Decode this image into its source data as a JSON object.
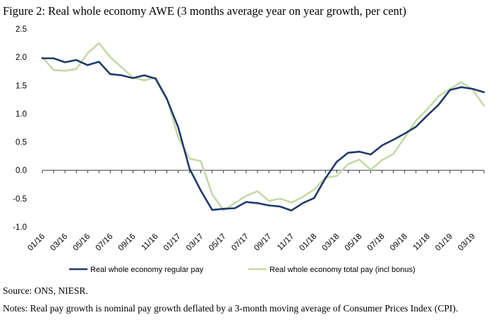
{
  "figure": {
    "title": "Figure 2: Real whole economy AWE (3 months average year on year growth, per cent)",
    "source": "Source: ONS, NIESR.",
    "notes": "Notes: Real pay growth is nominal pay growth deflated by a 3-month moving average of Consumer Prices Index (CPI)."
  },
  "chart_data": {
    "type": "line",
    "title": "Figure 2: Real whole economy AWE (3 months average year on year growth, per cent)",
    "xlabel": "",
    "ylabel": "",
    "ylim": [
      -1.0,
      2.5
    ],
    "yticks": [
      "2.5",
      "2.0",
      "1.5",
      "1.0",
      "0.5",
      "0.0",
      "-0.5",
      "-1.0"
    ],
    "ytick_values": [
      2.5,
      2.0,
      1.5,
      1.0,
      0.5,
      0.0,
      -0.5,
      -1.0
    ],
    "x": [
      "01/16",
      "02/16",
      "03/16",
      "04/16",
      "05/16",
      "06/16",
      "07/16",
      "08/16",
      "09/16",
      "10/16",
      "11/16",
      "12/16",
      "01/17",
      "02/17",
      "03/17",
      "04/17",
      "05/17",
      "06/17",
      "07/17",
      "08/17",
      "09/17",
      "10/17",
      "11/17",
      "12/17",
      "01/18",
      "02/18",
      "03/18",
      "04/18",
      "05/18",
      "06/18",
      "07/18",
      "08/18",
      "09/18",
      "10/18",
      "11/18",
      "12/18",
      "01/19",
      "02/19",
      "03/19",
      "04/19"
    ],
    "xtick_labels": [
      "01/16",
      "03/16",
      "05/16",
      "07/16",
      "09/16",
      "11/16",
      "01/17",
      "03/17",
      "05/17",
      "07/17",
      "09/17",
      "11/17",
      "01/18",
      "03/18",
      "05/18",
      "07/18",
      "09/18",
      "11/18",
      "01/19",
      "03/19"
    ],
    "grid": false,
    "legend_position": "bottom",
    "series": [
      {
        "name": "Real whole economy regular pay",
        "color": "#1f3a6e",
        "values": [
          1.98,
          1.98,
          1.91,
          1.95,
          1.86,
          1.92,
          1.7,
          1.68,
          1.63,
          1.68,
          1.62,
          1.26,
          0.76,
          0.03,
          -0.36,
          -0.7,
          -0.68,
          -0.67,
          -0.56,
          -0.58,
          -0.62,
          -0.64,
          -0.71,
          -0.58,
          -0.49,
          -0.14,
          0.15,
          0.31,
          0.33,
          0.28,
          0.44,
          0.54,
          0.65,
          0.77,
          0.97,
          1.16,
          1.42,
          1.47,
          1.44,
          1.38
        ]
      },
      {
        "name": "Real whole economy total pay (incl bonus)",
        "color": "#c5d9a5",
        "values": [
          2.0,
          1.77,
          1.76,
          1.79,
          2.07,
          2.25,
          2.0,
          1.82,
          1.64,
          1.59,
          1.64,
          1.28,
          0.58,
          0.21,
          0.16,
          -0.42,
          -0.71,
          -0.58,
          -0.45,
          -0.37,
          -0.54,
          -0.5,
          -0.57,
          -0.47,
          -0.34,
          -0.13,
          -0.1,
          0.11,
          0.19,
          0.01,
          0.18,
          0.29,
          0.58,
          0.88,
          1.08,
          1.31,
          1.44,
          1.56,
          1.43,
          1.14
        ]
      }
    ]
  }
}
